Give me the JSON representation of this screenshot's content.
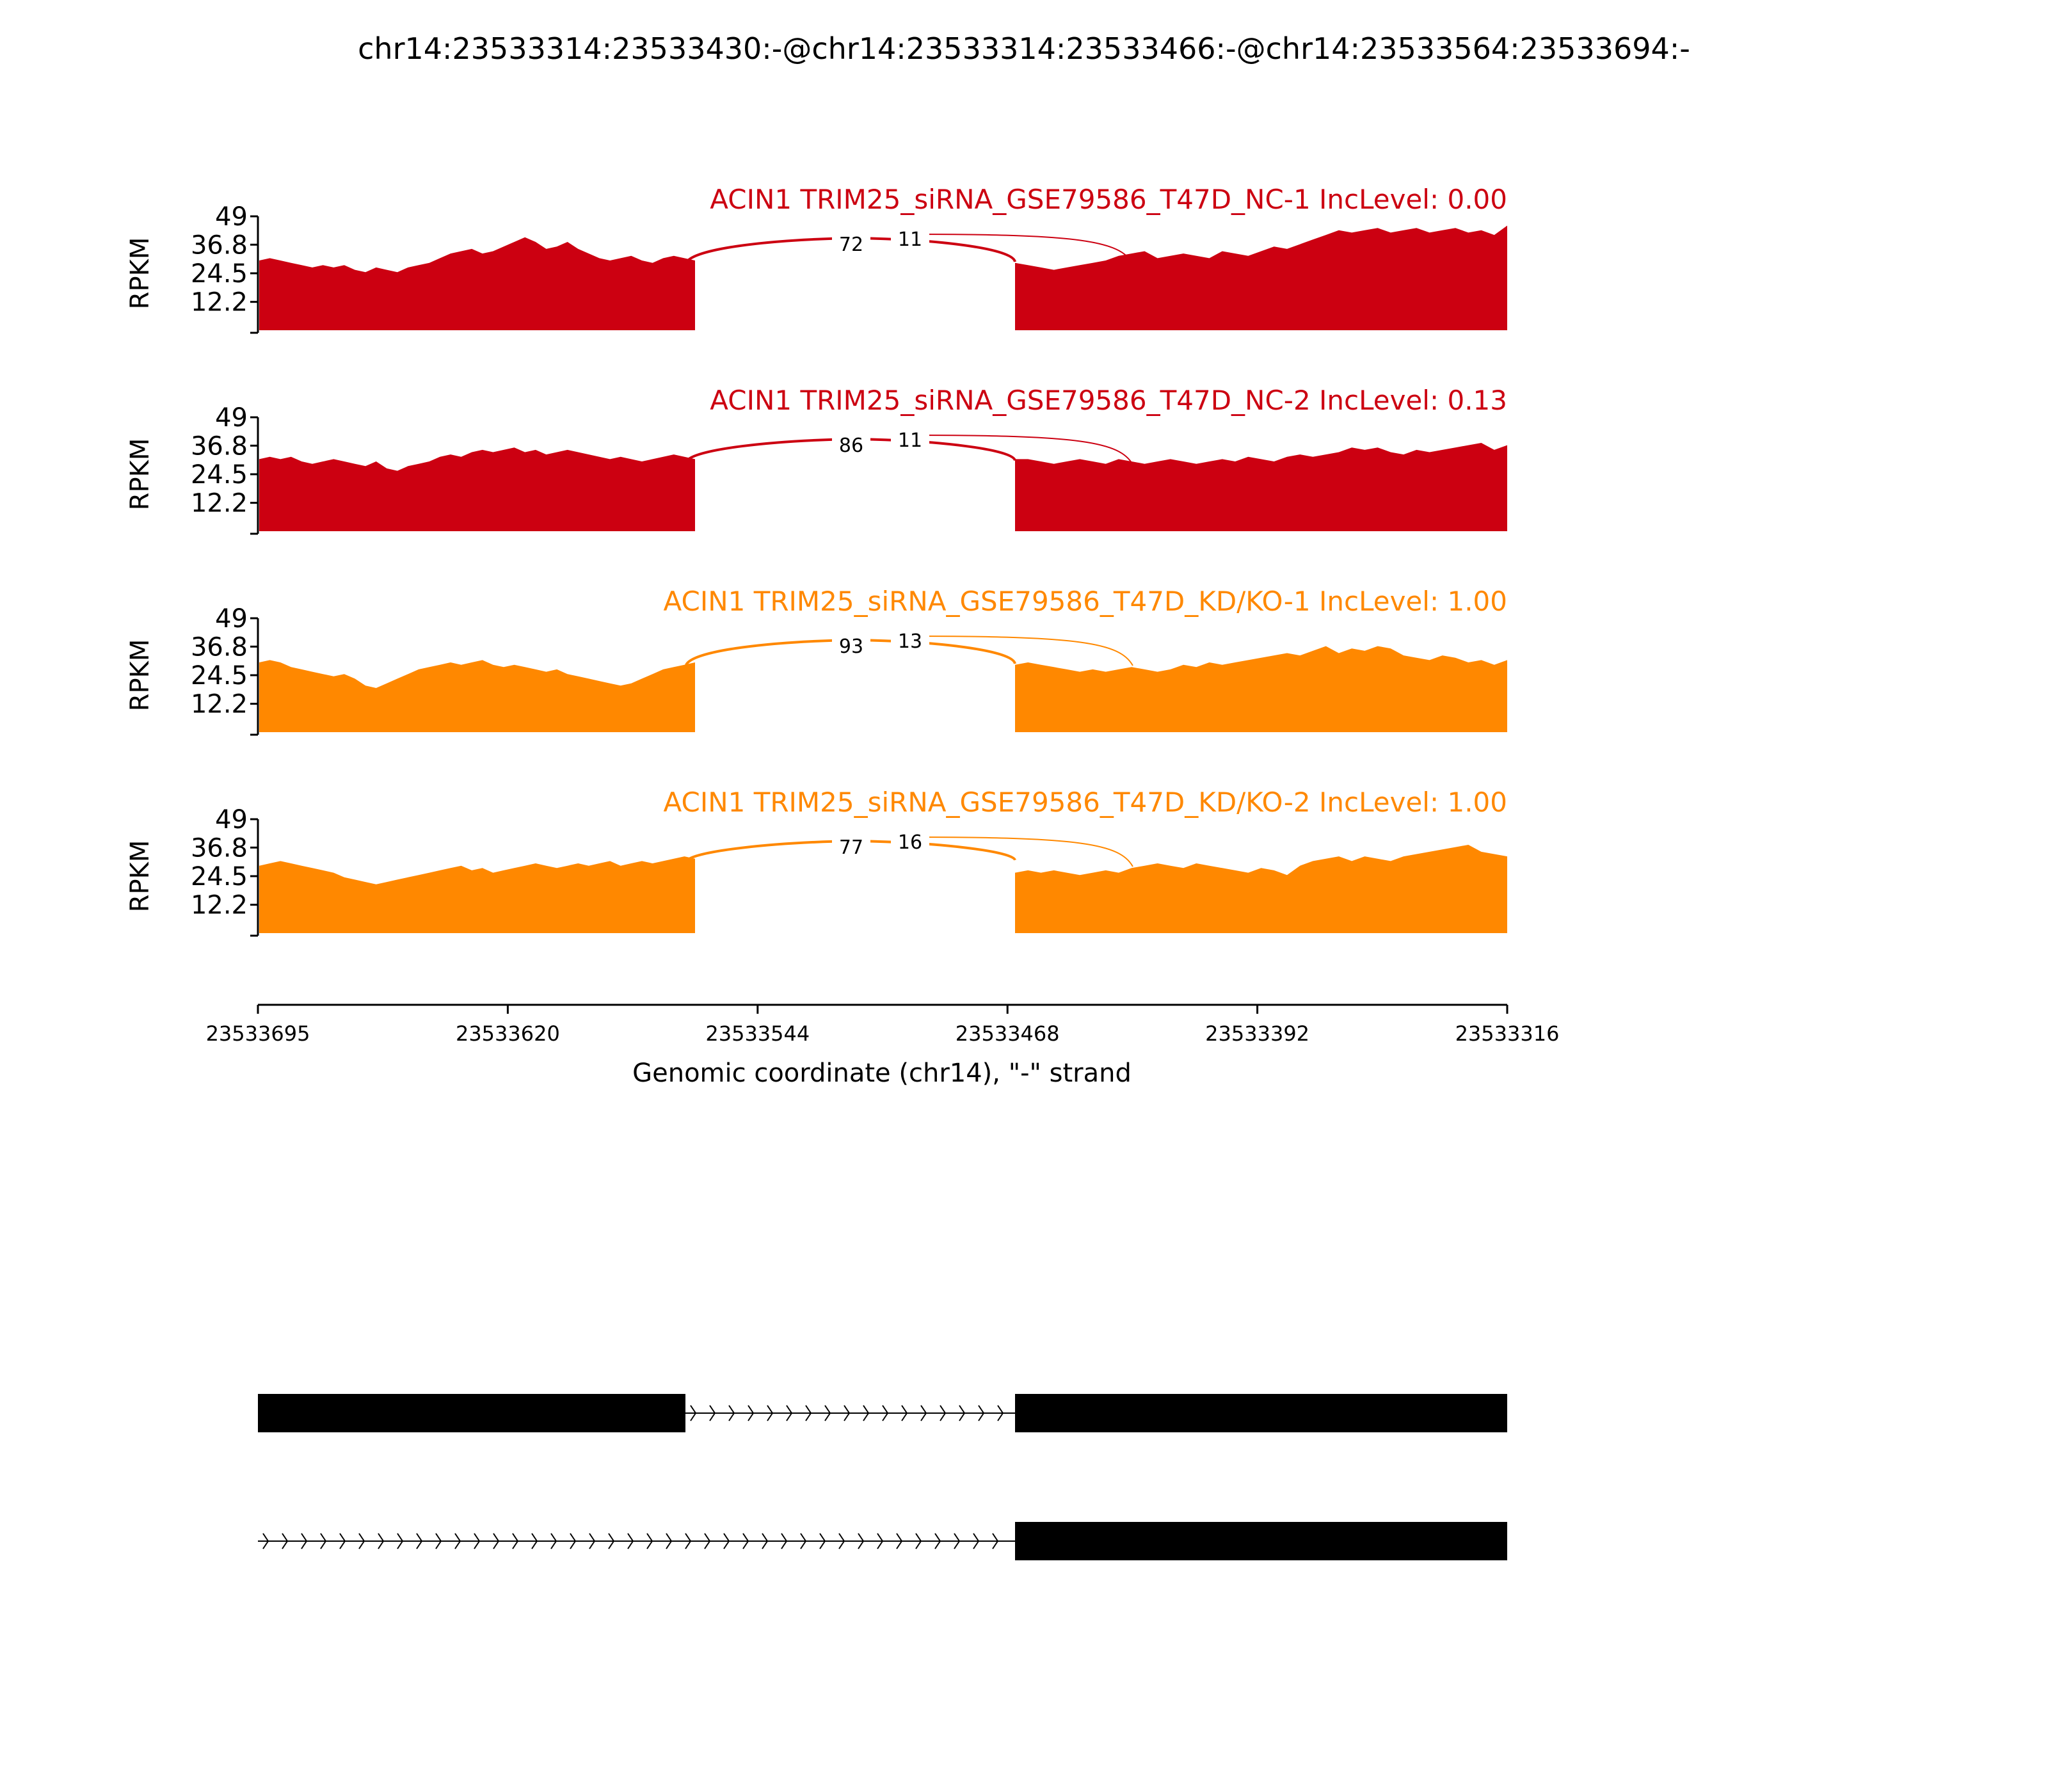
{
  "chart_data": {
    "type": "sashimi",
    "title": "chr14:23533314:23533430:-@chr14:23533314:23533466:-@chr14:23533564:23533694:-",
    "xlabel": "Genomic coordinate (chr14), \"-\" strand",
    "ylabel": "RPKM",
    "x_ticks": [
      "23533695",
      "23533620",
      "23533544",
      "23533468",
      "23533392",
      "23533316"
    ],
    "x_range": [
      23533695,
      23533316
    ],
    "y_ticks": [
      "49",
      "36.8",
      "24.5",
      "12.2"
    ],
    "ylim": [
      0,
      49
    ],
    "exons": {
      "left": [
        23533695,
        23533566
      ],
      "middle_start": 23533468,
      "right_start": 23533432,
      "right_end": 23533316
    },
    "tracks": [
      {
        "label": "ACIN1 TRIM25_siRNA_GSE79586_T47D_NC-1 IncLevel: 0.00",
        "color": "#cc0011",
        "junction_counts": [
          "72",
          "11"
        ],
        "coverage_left": [
          30,
          31,
          30,
          29,
          28,
          27,
          28,
          27,
          28,
          26,
          25,
          27,
          26,
          25,
          27,
          28,
          29,
          31,
          33,
          34,
          35,
          33,
          34,
          36,
          38,
          40,
          38,
          35,
          36,
          38,
          35,
          33,
          31,
          30,
          31,
          32,
          30,
          29,
          31,
          32,
          31,
          30
        ],
        "coverage_right": [
          29,
          28,
          27,
          26,
          27,
          28,
          29,
          30,
          32,
          33,
          34,
          31,
          32,
          33,
          32,
          31,
          34,
          33,
          32,
          34,
          36,
          35,
          37,
          39,
          41,
          43,
          42,
          43,
          44,
          42,
          43,
          44,
          42,
          43,
          44,
          42,
          43,
          41,
          45
        ]
      },
      {
        "label": "ACIN1 TRIM25_siRNA_GSE79586_T47D_NC-2 IncLevel: 0.13",
        "color": "#cc0011",
        "junction_counts": [
          "86",
          "11"
        ],
        "coverage_left": [
          31,
          32,
          31,
          32,
          30,
          29,
          30,
          31,
          30,
          29,
          28,
          30,
          27,
          26,
          28,
          29,
          30,
          32,
          33,
          32,
          34,
          35,
          34,
          35,
          36,
          34,
          35,
          33,
          34,
          35,
          34,
          33,
          32,
          31,
          32,
          31,
          30,
          31,
          32,
          33,
          32,
          31
        ],
        "coverage_right": [
          31,
          31,
          30,
          29,
          30,
          31,
          30,
          29,
          31,
          30,
          29,
          30,
          31,
          30,
          29,
          30,
          31,
          30,
          32,
          31,
          30,
          32,
          33,
          32,
          33,
          34,
          36,
          35,
          36,
          34,
          33,
          35,
          34,
          35,
          36,
          37,
          38,
          35,
          37
        ]
      },
      {
        "label": "ACIN1 TRIM25_siRNA_GSE79586_T47D_KD/KO-1 IncLevel: 1.00",
        "color": "#ff8800",
        "junction_counts": [
          "93",
          "13"
        ],
        "coverage_left": [
          30,
          31,
          30,
          28,
          27,
          26,
          25,
          24,
          25,
          23,
          20,
          19,
          21,
          23,
          25,
          27,
          28,
          29,
          30,
          29,
          30,
          31,
          29,
          28,
          29,
          28,
          27,
          26,
          27,
          25,
          24,
          23,
          22,
          21,
          20,
          21,
          23,
          25,
          27,
          28,
          29,
          30
        ],
        "coverage_right": [
          29,
          30,
          29,
          28,
          27,
          26,
          27,
          26,
          27,
          28,
          27,
          26,
          27,
          29,
          28,
          30,
          29,
          30,
          31,
          32,
          33,
          34,
          33,
          35,
          37,
          34,
          36,
          35,
          37,
          36,
          33,
          32,
          31,
          33,
          32,
          30,
          31,
          29,
          31
        ]
      },
      {
        "label": "ACIN1 TRIM25_siRNA_GSE79586_T47D_KD/KO-2 IncLevel: 1.00",
        "color": "#ff8800",
        "junction_counts": [
          "77",
          "16"
        ],
        "coverage_left": [
          29,
          30,
          31,
          30,
          29,
          28,
          27,
          26,
          24,
          23,
          22,
          21,
          22,
          23,
          24,
          25,
          26,
          27,
          28,
          29,
          27,
          28,
          26,
          27,
          28,
          29,
          30,
          29,
          28,
          29,
          30,
          29,
          30,
          31,
          29,
          30,
          31,
          30,
          31,
          32,
          33,
          32
        ],
        "coverage_right": [
          26,
          27,
          26,
          27,
          26,
          25,
          26,
          27,
          26,
          28,
          29,
          30,
          29,
          28,
          30,
          29,
          28,
          27,
          26,
          28,
          27,
          25,
          29,
          31,
          32,
          33,
          31,
          33,
          32,
          31,
          33,
          34,
          35,
          36,
          37,
          38,
          35,
          34,
          33
        ]
      }
    ]
  }
}
